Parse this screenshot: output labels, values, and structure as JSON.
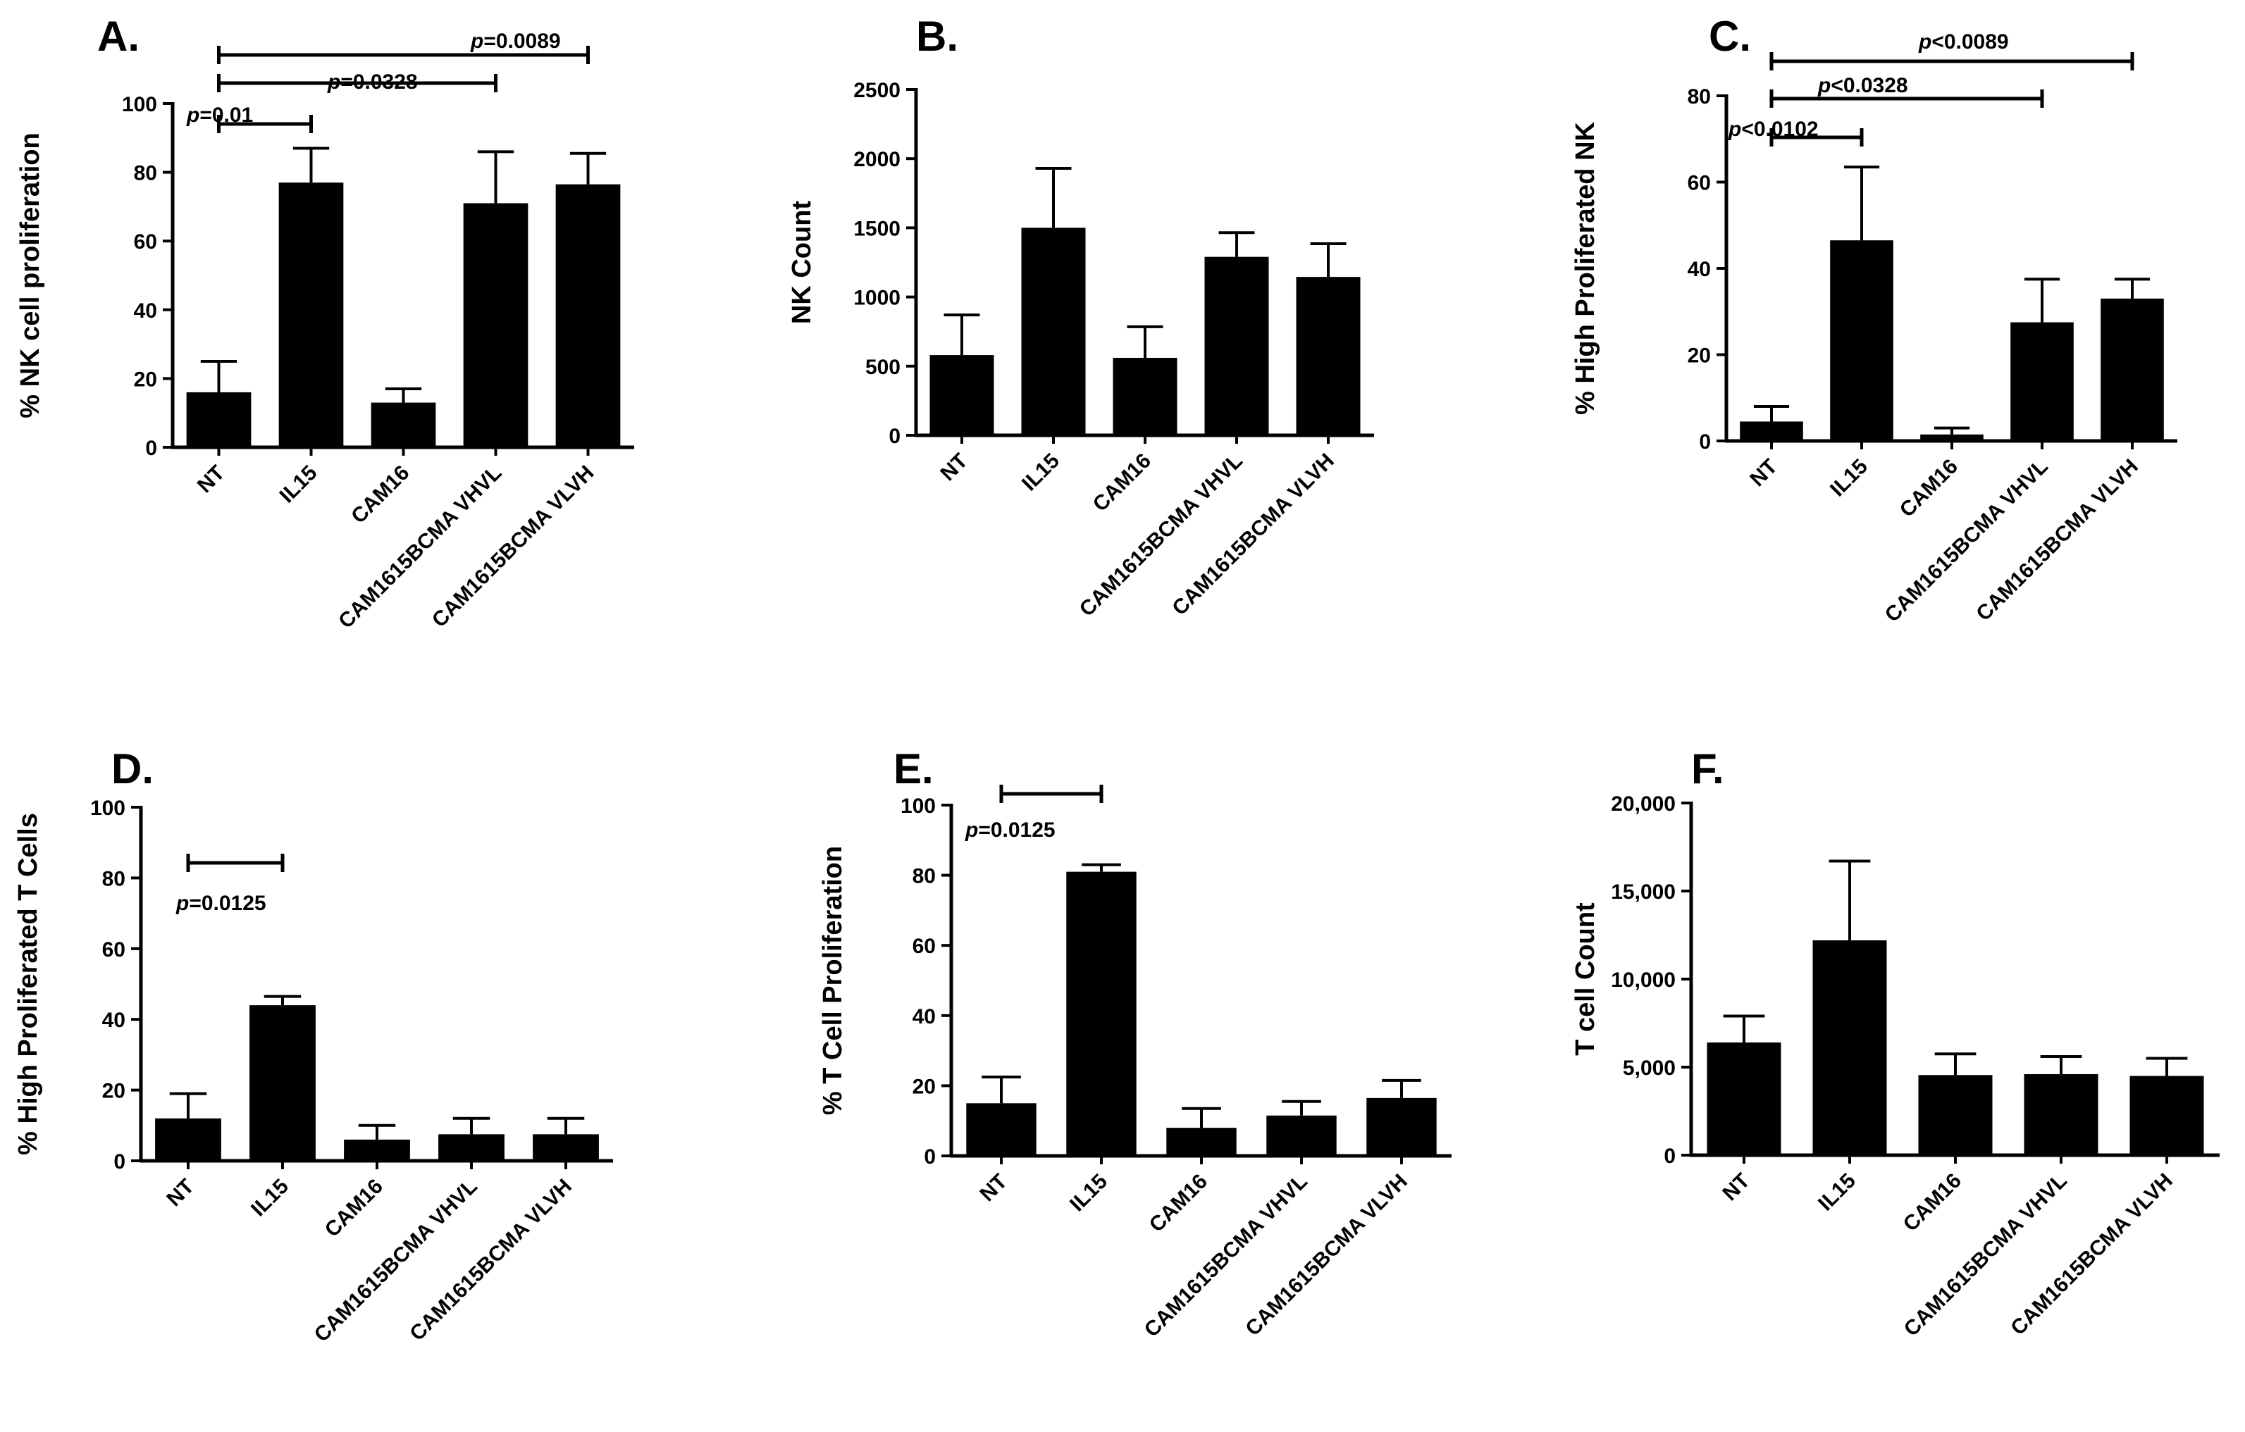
{
  "chart_data": [
    {
      "type": "bar",
      "panel": "A.",
      "ylabel": "% NK cell proliferation",
      "categories": [
        "NT",
        "IL15",
        "CAM16",
        "CAM1615BCMA VHVL",
        "CAM1615BCMA VLVH"
      ],
      "values": [
        16,
        77,
        13,
        71,
        76.5
      ],
      "errors": [
        9,
        10,
        4,
        15,
        9
      ],
      "ylim": [
        0,
        100
      ],
      "yticks": [
        "0",
        "20",
        "40",
        "60",
        "80",
        "100"
      ],
      "comparisons": [
        {
          "from": 0,
          "to": 1,
          "p_prefix": "p",
          "p_suffix": "=0.01"
        },
        {
          "from": 0,
          "to": 3,
          "p_prefix": "p",
          "p_suffix": "=0.0328"
        },
        {
          "from": 0,
          "to": 4,
          "p_prefix": "p",
          "p_suffix": "=0.0089"
        }
      ]
    },
    {
      "type": "bar",
      "panel": "B.",
      "ylabel": "NK Count",
      "categories": [
        "NT",
        "IL15",
        "CAM16",
        "CAM1615BCMA VHVL",
        "CAM1615BCMA VLVH"
      ],
      "values": [
        580,
        1500,
        560,
        1290,
        1145
      ],
      "errors": [
        290,
        430,
        225,
        175,
        240
      ],
      "ylim": [
        0,
        2500
      ],
      "yticks": [
        "0",
        "500",
        "1000",
        "1500",
        "2000",
        "2500"
      ],
      "comparisons": []
    },
    {
      "type": "bar",
      "panel": "C.",
      "ylabel": "% High Proliferated NK",
      "categories": [
        "NT",
        "IL15",
        "CAM16",
        "CAM1615BCMA VHVL",
        "CAM1615BCMA VLVH"
      ],
      "values": [
        4.5,
        46.5,
        1.5,
        27.5,
        33
      ],
      "errors": [
        3.5,
        17,
        1.5,
        10,
        4.5
      ],
      "ylim": [
        0,
        80
      ],
      "yticks": [
        "0",
        "20",
        "40",
        "60",
        "80"
      ],
      "comparisons": [
        {
          "from": 0,
          "to": 1,
          "p_prefix": "p",
          "p_suffix": "<0.0102"
        },
        {
          "from": 0,
          "to": 3,
          "p_prefix": "p",
          "p_suffix": "<0.0328"
        },
        {
          "from": 0,
          "to": 4,
          "p_prefix": "p",
          "p_suffix": "<0.0089"
        }
      ]
    },
    {
      "type": "bar",
      "panel": "D.",
      "ylabel": "% High Proliferated T Cells",
      "categories": [
        "NT",
        "IL15",
        "CAM16",
        "CAM1615BCMA VHVL",
        "CAM1615BCMA VLVH"
      ],
      "values": [
        12,
        44,
        6,
        7.5,
        7.5
      ],
      "errors": [
        7,
        2.5,
        4,
        4.5,
        4.5
      ],
      "ylim": [
        0,
        100
      ],
      "yticks": [
        "0",
        "20",
        "40",
        "60",
        "80",
        "100"
      ],
      "comparisons": [
        {
          "from": 0,
          "to": 1,
          "p_prefix": "p",
          "p_suffix": "=0.0125"
        }
      ]
    },
    {
      "type": "bar",
      "panel": "E.",
      "ylabel": "% T Cell Proliferation",
      "categories": [
        "NT",
        "IL15",
        "CAM16",
        "CAM1615BCMA VHVL",
        "CAM1615BCMA VLVH"
      ],
      "values": [
        15,
        81,
        8,
        11.5,
        16.5
      ],
      "errors": [
        7.5,
        2,
        5.5,
        4,
        5
      ],
      "ylim": [
        0,
        100
      ],
      "yticks": [
        "0",
        "20",
        "40",
        "60",
        "80",
        "100"
      ],
      "comparisons": [
        {
          "from": 0,
          "to": 1,
          "p_prefix": "p",
          "p_suffix": "=0.0125"
        }
      ]
    },
    {
      "type": "bar",
      "panel": "F.",
      "ylabel": "T cell Count",
      "categories": [
        "NT",
        "IL15",
        "CAM16",
        "CAM1615BCMA VHVL",
        "CAM1615BCMA VLVH"
      ],
      "values": [
        6400,
        12200,
        4550,
        4600,
        4500
      ],
      "errors": [
        1500,
        4500,
        1200,
        1000,
        1000
      ],
      "ylim": [
        0,
        20000
      ],
      "yticks": [
        "0",
        "5,000",
        "10,000",
        "15,000",
        "20,000"
      ],
      "comparisons": []
    }
  ],
  "colors": {
    "bar": "#000000",
    "axis": "#000000",
    "background": "#ffffff"
  }
}
